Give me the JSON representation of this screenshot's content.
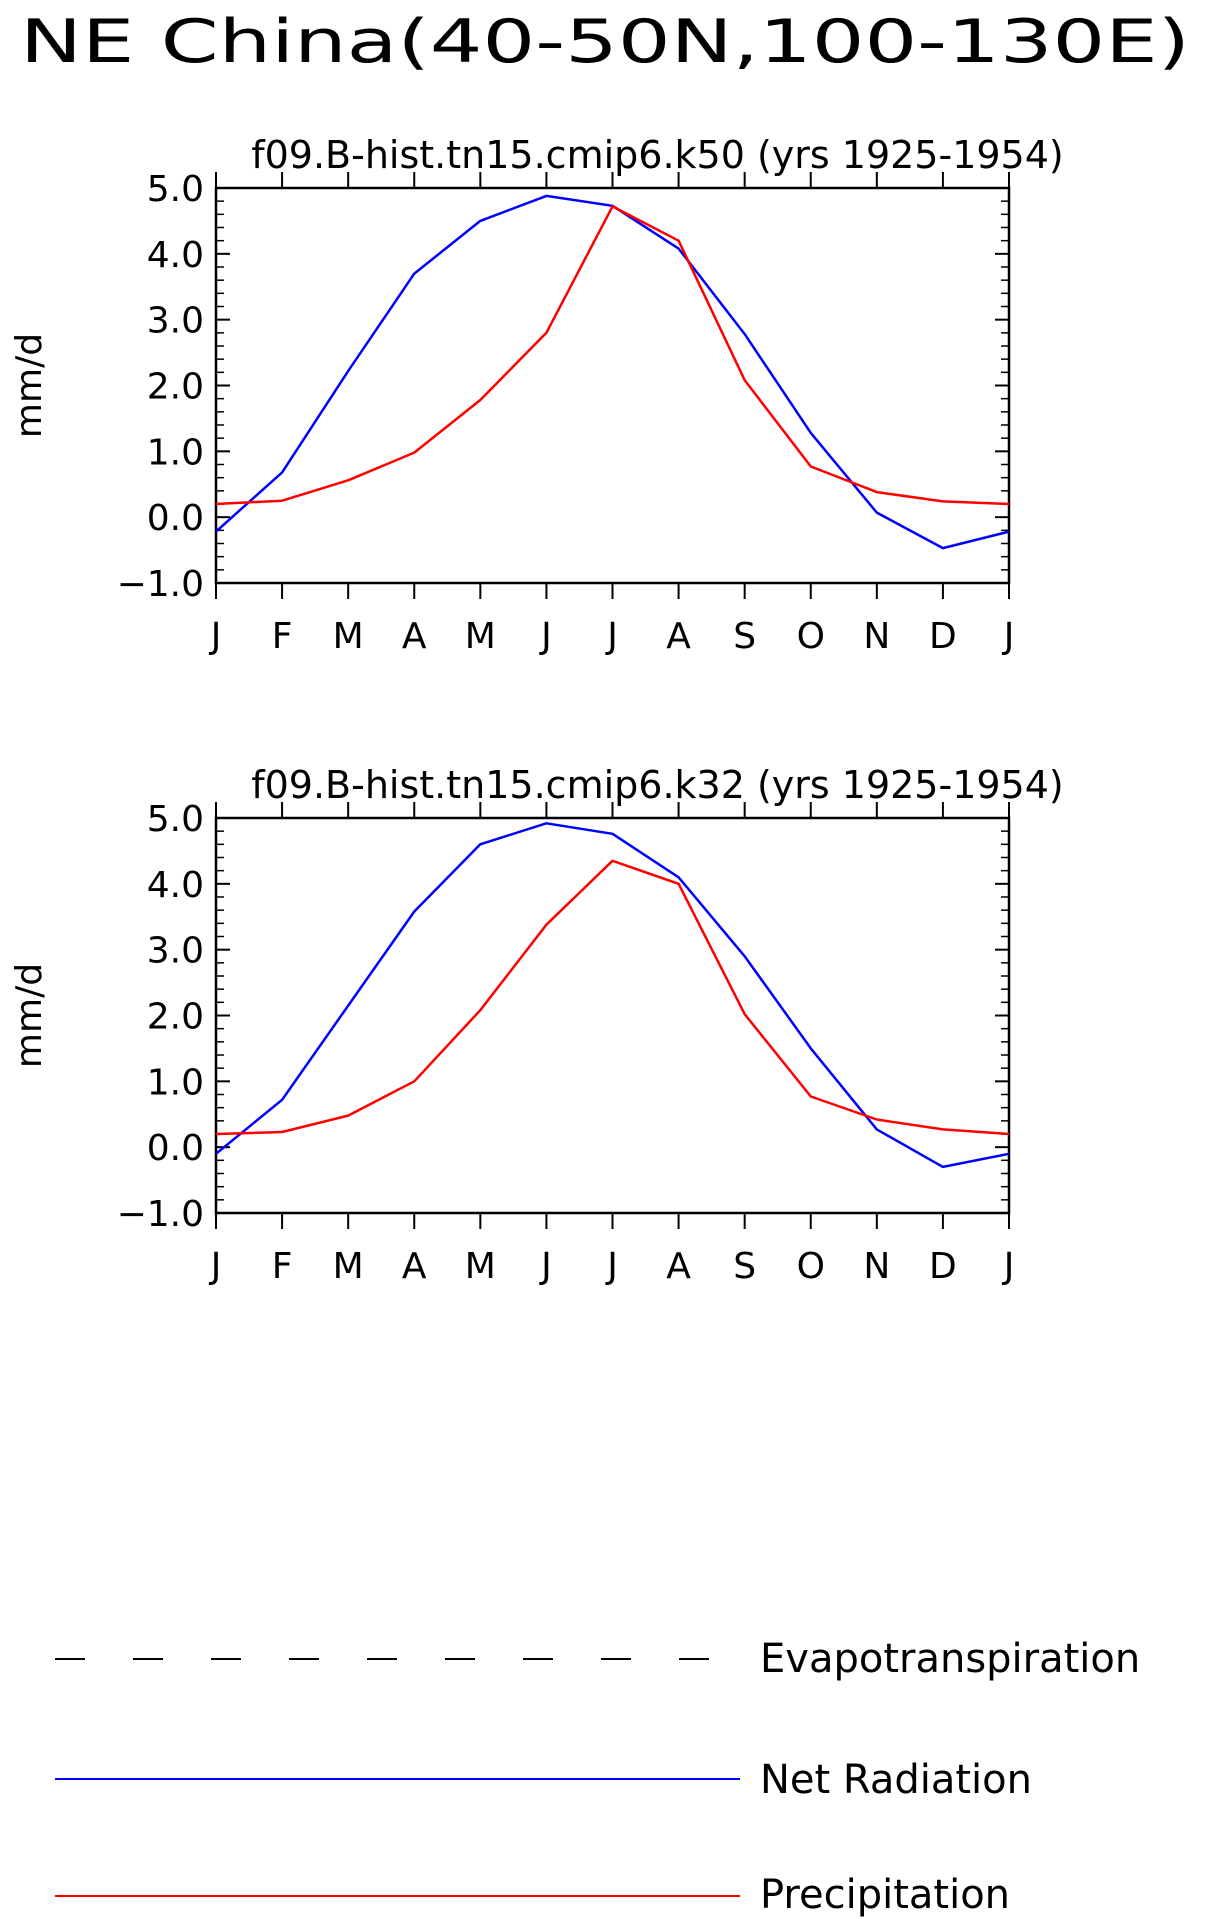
{
  "figure_title": "NE China(40-50N,100-130E)",
  "legend": [
    {
      "label": "Evapotranspiration",
      "color": "#000000",
      "style": "dashed"
    },
    {
      "label": "Net Radiation",
      "color": "#0000ff",
      "style": "solid"
    },
    {
      "label": "Precipitation",
      "color": "#ff0000",
      "style": "solid"
    }
  ],
  "chart_data": [
    {
      "type": "line",
      "title": "f09.B-hist.tn15.cmip6.k50 (yrs 1925-1954)",
      "ylabel": "mm/d",
      "xlabel": "",
      "categories": [
        "J",
        "F",
        "M",
        "A",
        "M",
        "J",
        "J",
        "A",
        "S",
        "O",
        "N",
        "D",
        "J"
      ],
      "ylim": [
        -1.0,
        5.0
      ],
      "yticks": [
        "-1.0",
        "0.0",
        "1.0",
        "2.0",
        "3.0",
        "4.0",
        "5.0"
      ],
      "grid": false,
      "series": [
        {
          "name": "Net Radiation",
          "color": "#0000ff",
          "values": [
            -0.22,
            0.68,
            2.22,
            3.7,
            4.5,
            4.88,
            4.73,
            4.08,
            2.78,
            1.28,
            0.07,
            -0.47,
            -0.22
          ]
        },
        {
          "name": "Precipitation",
          "color": "#ff0000",
          "values": [
            0.2,
            0.25,
            0.56,
            0.98,
            1.78,
            2.8,
            4.72,
            4.2,
            2.08,
            0.77,
            0.38,
            0.24,
            0.2
          ]
        }
      ]
    },
    {
      "type": "line",
      "title": "f09.B-hist.tn15.cmip6.k32 (yrs 1925-1954)",
      "ylabel": "mm/d",
      "xlabel": "",
      "categories": [
        "J",
        "F",
        "M",
        "A",
        "M",
        "J",
        "J",
        "A",
        "S",
        "O",
        "N",
        "D",
        "J"
      ],
      "ylim": [
        -1.0,
        5.0
      ],
      "yticks": [
        "-1.0",
        "0.0",
        "1.0",
        "2.0",
        "3.0",
        "4.0",
        "5.0"
      ],
      "grid": false,
      "series": [
        {
          "name": "Net Radiation",
          "color": "#0000ff",
          "values": [
            -0.1,
            0.72,
            2.15,
            3.58,
            4.6,
            4.92,
            4.76,
            4.1,
            2.9,
            1.5,
            0.27,
            -0.3,
            -0.1
          ]
        },
        {
          "name": "Precipitation",
          "color": "#ff0000",
          "values": [
            0.2,
            0.23,
            0.48,
            1.0,
            2.08,
            3.38,
            4.35,
            4.0,
            2.02,
            0.77,
            0.42,
            0.27,
            0.2
          ]
        }
      ]
    }
  ]
}
